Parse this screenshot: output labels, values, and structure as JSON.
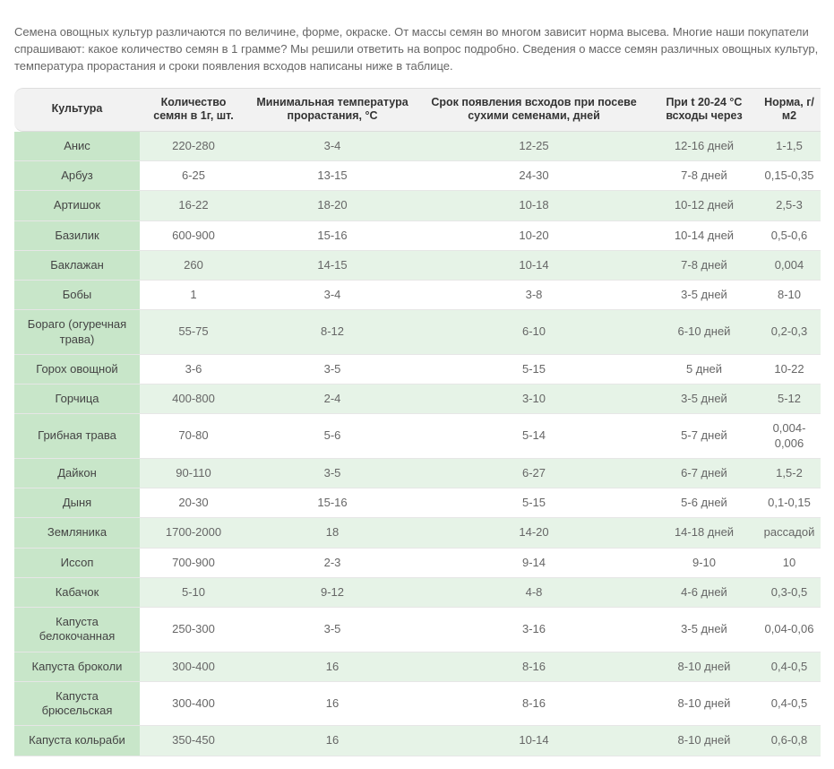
{
  "intro": "Семена овощных культур различаются по величине, форме, окраске. От массы семян во многом зависит норма высева. Многие наши покупатели спрашивают: какое количество семян в 1 грамме? Мы решили ответить на вопрос подробно. Сведения о массе семян различных овощных культур, температура прорастания и сроки появления всходов написаны ниже в таблице.",
  "table": {
    "columns": [
      "Культура",
      "Количество семян в 1г, шт.",
      "Минимальная температура прорастания, °С",
      "Срок появления всходов при посеве сухими семенами, дней",
      "При t 20-24 °С всходы через",
      "Норма, г/м2"
    ],
    "rows": [
      [
        "Анис",
        "220-280",
        "3-4",
        "12-25",
        "12-16 дней",
        "1-1,5"
      ],
      [
        "Арбуз",
        "6-25",
        "13-15",
        "24-30",
        "7-8 дней",
        "0,15-0,35"
      ],
      [
        "Артишок",
        "16-22",
        "18-20",
        "10-18",
        "10-12 дней",
        "2,5-3"
      ],
      [
        "Базилик",
        "600-900",
        "15-16",
        "10-20",
        "10-14 дней",
        "0,5-0,6"
      ],
      [
        "Баклажан",
        "260",
        "14-15",
        "10-14",
        "7-8 дней",
        "0,004"
      ],
      [
        "Бобы",
        "1",
        "3-4",
        "3-8",
        "3-5 дней",
        "8-10"
      ],
      [
        "Бораго (огуречная трава)",
        "55-75",
        "8-12",
        "6-10",
        "6-10 дней",
        "0,2-0,3"
      ],
      [
        "Горох овощной",
        "3-6",
        "3-5",
        "5-15",
        "5 дней",
        "10-22"
      ],
      [
        "Горчица",
        "400-800",
        "2-4",
        "3-10",
        "3-5 дней",
        "5-12"
      ],
      [
        "Грибная трава",
        "70-80",
        "5-6",
        "5-14",
        "5-7 дней",
        "0,004-0,006"
      ],
      [
        "Дайкон",
        "90-110",
        "3-5",
        "6-27",
        "6-7 дней",
        "1,5-2"
      ],
      [
        "Дыня",
        "20-30",
        "15-16",
        "5-15",
        "5-6 дней",
        "0,1-0,15"
      ],
      [
        "Земляника",
        "1700-2000",
        "18",
        "14-20",
        "14-18 дней",
        "рассадой"
      ],
      [
        "Иссоп",
        "700-900",
        "2-3",
        "9-14",
        "9-10",
        "10"
      ],
      [
        "Кабачок",
        "5-10",
        "9-12",
        "4-8",
        "4-6 дней",
        "0,3-0,5"
      ],
      [
        "Капуста белокочанная",
        "250-300",
        "3-5",
        "3-16",
        "3-5 дней",
        "0,04-0,06"
      ],
      [
        "Капуста броколи",
        "300-400",
        "16",
        "8-16",
        "8-10 дней",
        "0,4-0,5"
      ],
      [
        "Капуста брюсельская",
        "300-400",
        "16",
        "8-16",
        "8-10 дней",
        "0,4-0,5"
      ],
      [
        "Капуста кольраби",
        "350-450",
        "16",
        "10-14",
        "8-10 дней",
        "0,6-0,8"
      ]
    ],
    "colors": {
      "header_bg": "#f2f2f2",
      "row_name_bg": "#c8e6c9",
      "alt_row_bg": "#e6f3e7",
      "border": "#e6e6e6",
      "text": "#555"
    }
  }
}
